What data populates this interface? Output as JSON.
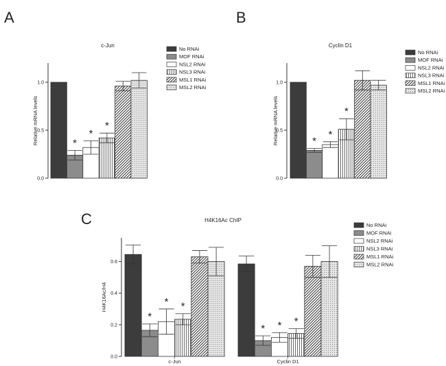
{
  "patterns": [
    {
      "id": "pat-solid-dark",
      "name": "No RNAi",
      "kind": "solid",
      "color": "#3c3c3c"
    },
    {
      "id": "pat-solid-mid",
      "name": "MOF RNAi",
      "kind": "solid",
      "color": "#8c8c8c"
    },
    {
      "id": "pat-white",
      "name": "NSL2 RNAi",
      "kind": "solid",
      "color": "#ffffff"
    },
    {
      "id": "pat-vert",
      "name": "NSL3 RNAi",
      "kind": "vertical-lines",
      "color": "#555555"
    },
    {
      "id": "pat-diag",
      "name": "MSL1 RNAi",
      "kind": "diagonal-lines",
      "color": "#333333"
    },
    {
      "id": "pat-dots",
      "name": "MSL2 RNAi",
      "kind": "dots",
      "color": "#777777"
    }
  ],
  "chart_data": [
    {
      "panel": "A",
      "type": "bar",
      "title": "c-Jun",
      "ylabel": "Relative mRNA levels",
      "xlabel": "",
      "ylim": [
        0,
        1.2
      ],
      "yticks": [
        "0.0",
        "0.5",
        "1.0"
      ],
      "categories": [
        "c-Jun"
      ],
      "series": [
        {
          "name": "No RNAi",
          "values": [
            1.0
          ],
          "err": [
            0
          ],
          "sig": false
        },
        {
          "name": "MOF RNAi",
          "values": [
            0.24
          ],
          "err": [
            0.05
          ],
          "sig": true
        },
        {
          "name": "NSL2 RNAi",
          "values": [
            0.32
          ],
          "err": [
            0.07
          ],
          "sig": true
        },
        {
          "name": "NSL3 RNAi",
          "values": [
            0.42
          ],
          "err": [
            0.05
          ],
          "sig": true
        },
        {
          "name": "MSL1 RNAi",
          "values": [
            0.96
          ],
          "err": [
            0.05
          ],
          "sig": false
        },
        {
          "name": "MSL2 RNAi",
          "values": [
            1.02
          ],
          "err": [
            0.08
          ],
          "sig": false
        }
      ],
      "grid": false,
      "legend": "right"
    },
    {
      "panel": "B",
      "type": "bar",
      "title": "Cyclin D1",
      "ylabel": "Relative mRNA levels",
      "xlabel": "",
      "ylim": [
        0,
        1.2
      ],
      "yticks": [
        "0.0",
        "0.5",
        "1.0"
      ],
      "categories": [
        "Cyclin D1"
      ],
      "series": [
        {
          "name": "No RNAi",
          "values": [
            1.0
          ],
          "err": [
            0
          ],
          "sig": false
        },
        {
          "name": "MOF RNAi",
          "values": [
            0.29
          ],
          "err": [
            0.02
          ],
          "sig": true
        },
        {
          "name": "NSL2 RNAi",
          "values": [
            0.35
          ],
          "err": [
            0.03
          ],
          "sig": true
        },
        {
          "name": "NSL3 RNAi",
          "values": [
            0.51
          ],
          "err": [
            0.11
          ],
          "sig": true
        },
        {
          "name": "MSL1 RNAi",
          "values": [
            1.02
          ],
          "err": [
            0.1
          ],
          "sig": false
        },
        {
          "name": "MSL2 RNAi",
          "values": [
            0.97
          ],
          "err": [
            0.05
          ],
          "sig": false
        }
      ],
      "grid": false,
      "legend": "right"
    },
    {
      "panel": "C",
      "type": "bar",
      "title": "H4K16Ac ChIP",
      "ylabel": "H4K16Ac/H4",
      "xlabel": "",
      "ylim": [
        0,
        0.75
      ],
      "yticks": [
        "0.0",
        "0.2",
        "0.4",
        "0.6"
      ],
      "categories": [
        "c-Jun",
        "Cyclin D1"
      ],
      "series": [
        {
          "name": "No RNAi",
          "values": [
            0.645,
            0.585
          ],
          "err": [
            0.06,
            0.05
          ],
          "sig": [
            false,
            false
          ]
        },
        {
          "name": "MOF RNAi",
          "values": [
            0.165,
            0.1
          ],
          "err": [
            0.04,
            0.03
          ],
          "sig": [
            true,
            true
          ]
        },
        {
          "name": "NSL2 RNAi",
          "values": [
            0.22,
            0.12
          ],
          "err": [
            0.08,
            0.03
          ],
          "sig": [
            true,
            true
          ]
        },
        {
          "name": "NSL3 RNAi",
          "values": [
            0.235,
            0.145
          ],
          "err": [
            0.035,
            0.03
          ],
          "sig": [
            true,
            true
          ]
        },
        {
          "name": "MSL1 RNAi",
          "values": [
            0.63,
            0.57
          ],
          "err": [
            0.04,
            0.07
          ],
          "sig": [
            false,
            false
          ]
        },
        {
          "name": "MSL2 RNAi",
          "values": [
            0.6,
            0.6
          ],
          "err": [
            0.09,
            0.1
          ],
          "sig": [
            false,
            false
          ]
        }
      ],
      "grid": false,
      "legend": "right"
    }
  ]
}
